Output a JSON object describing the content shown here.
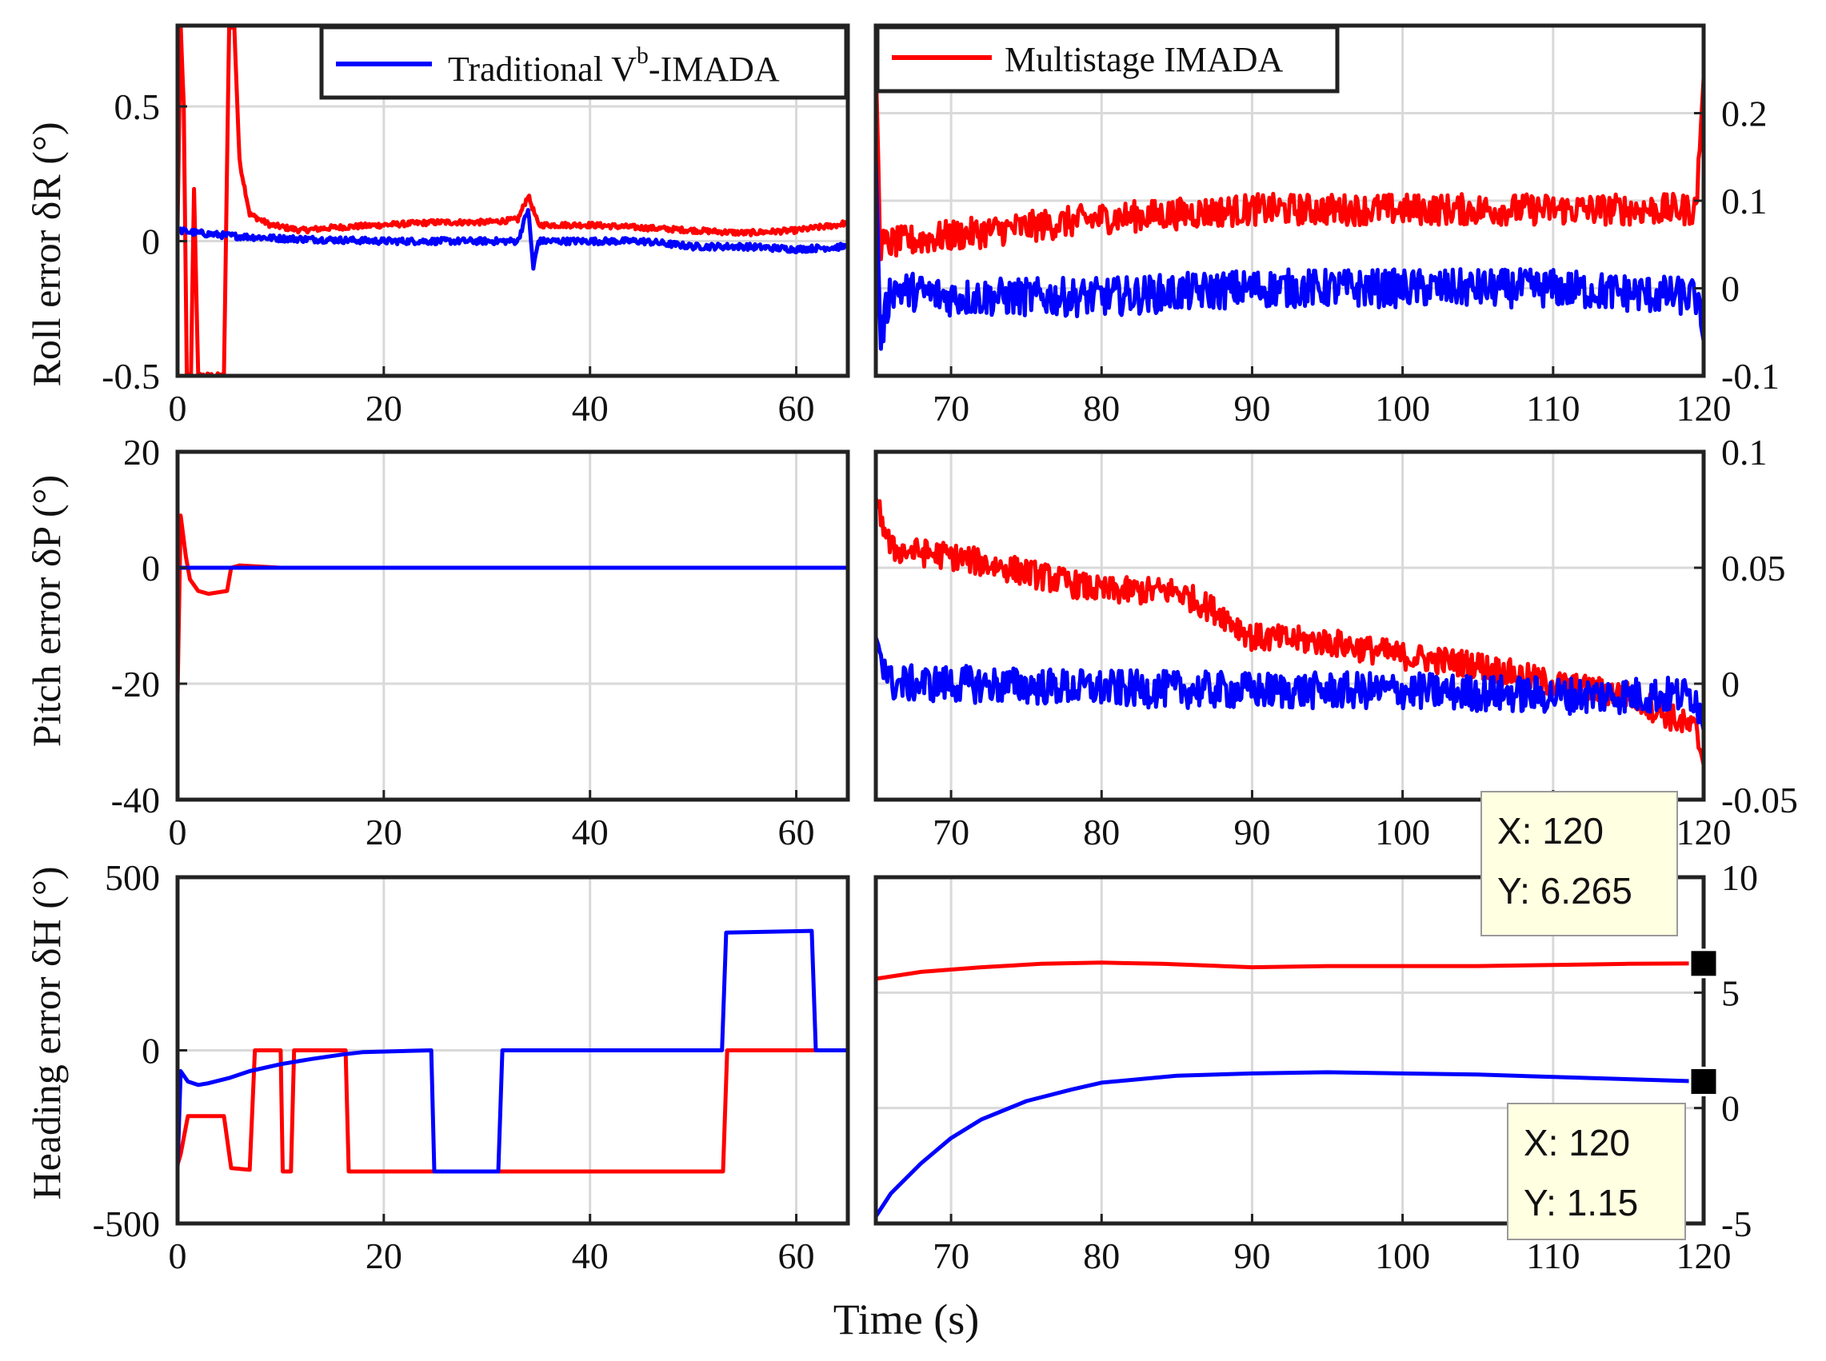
{
  "chart_data": {
    "type": "line",
    "xlabel": "Time (s)",
    "colors": {
      "traditional": "#0000ff",
      "multistage": "#ff0000",
      "grid": "#d9d9d9",
      "frame": "#222222"
    },
    "legend": [
      {
        "name": "Traditional V",
        "sup": "b",
        "suffix": "-IMADA",
        "color": "#0000ff",
        "placement": "top-left-panel"
      },
      {
        "name": "Multistage IMADA",
        "color": "#ff0000",
        "placement": "top-right-panel"
      }
    ],
    "rows": [
      {
        "ylabel": "Roll error δR (°)"
      },
      {
        "ylabel": "Pitch error δP (°)"
      },
      {
        "ylabel": "Heading error δH (°)"
      }
    ],
    "panels": [
      {
        "id": "roll-left",
        "row": 0,
        "side": "left",
        "xlim": [
          0,
          65
        ],
        "ylim": [
          -0.5,
          0.8
        ],
        "xticks": [
          0,
          20,
          40,
          60
        ],
        "xticklabels": [
          "0",
          "20",
          "40",
          "60"
        ],
        "yticks": [
          -0.5,
          0,
          0.5
        ],
        "yticklabels": [
          "-0.5",
          "0",
          "0.5"
        ],
        "series": [
          {
            "name": "Multistage IMADA",
            "color": "#ff0000",
            "points": [
              [
                0,
                0.05
              ],
              [
                0.3,
                0.8
              ],
              [
                0.6,
                0.5
              ],
              [
                0.9,
                -0.5
              ],
              [
                1.3,
                -0.5
              ],
              [
                1.6,
                0.2
              ],
              [
                2,
                -0.5
              ],
              [
                4.5,
                -0.5
              ],
              [
                5,
                0.8
              ],
              [
                5.5,
                0.8
              ],
              [
                6,
                0.3
              ],
              [
                7,
                0.1
              ],
              [
                9,
                0.06
              ],
              [
                12,
                0.04
              ],
              [
                15,
                0.05
              ],
              [
                20,
                0.06
              ],
              [
                25,
                0.07
              ],
              [
                30,
                0.07
              ],
              [
                33,
                0.08
              ],
              [
                34,
                0.17
              ],
              [
                35,
                0.06
              ],
              [
                40,
                0.06
              ],
              [
                45,
                0.05
              ],
              [
                50,
                0.04
              ],
              [
                55,
                0.03
              ],
              [
                60,
                0.04
              ],
              [
                64,
                0.06
              ],
              [
                65,
                0.07
              ]
            ],
            "noise": 0.01
          },
          {
            "name": "Traditional Vb-IMADA",
            "color": "#0000ff",
            "points": [
              [
                0,
                0.04
              ],
              [
                2,
                0.03
              ],
              [
                5,
                0.02
              ],
              [
                10,
                0.01
              ],
              [
                20,
                0.0
              ],
              [
                30,
                0.0
              ],
              [
                33,
                0.0
              ],
              [
                34,
                0.12
              ],
              [
                34.5,
                -0.1
              ],
              [
                35,
                0.0
              ],
              [
                40,
                0.0
              ],
              [
                45,
                0.0
              ],
              [
                50,
                -0.02
              ],
              [
                55,
                -0.02
              ],
              [
                60,
                -0.03
              ],
              [
                65,
                -0.02
              ]
            ],
            "noise": 0.012
          }
        ]
      },
      {
        "id": "roll-right",
        "row": 0,
        "side": "right",
        "xlim": [
          65,
          120
        ],
        "ylim": [
          -0.1,
          0.3
        ],
        "xticks": [
          70,
          80,
          90,
          100,
          110,
          120
        ],
        "xticklabels": [
          "70",
          "80",
          "90",
          "100",
          "110",
          "120"
        ],
        "yticks": [
          -0.1,
          0,
          0.1,
          0.2
        ],
        "yticklabels": [
          "-0.1",
          "0",
          "0.1",
          "0.2"
        ],
        "series": [
          {
            "name": "Multistage IMADA",
            "color": "#ff0000",
            "points": [
              [
                65,
                0.26
              ],
              [
                65.3,
                0.05
              ],
              [
                70,
                0.06
              ],
              [
                80,
                0.08
              ],
              [
                90,
                0.09
              ],
              [
                100,
                0.09
              ],
              [
                110,
                0.09
              ],
              [
                119.5,
                0.09
              ],
              [
                120,
                0.24
              ]
            ],
            "noise": 0.018
          },
          {
            "name": "Traditional Vb-IMADA",
            "color": "#0000ff",
            "points": [
              [
                65,
                0.15
              ],
              [
                65.3,
                -0.06
              ],
              [
                66,
                0.0
              ],
              [
                70,
                -0.01
              ],
              [
                80,
                -0.01
              ],
              [
                90,
                0.0
              ],
              [
                100,
                0.0
              ],
              [
                110,
                0.0
              ],
              [
                119.5,
                -0.01
              ],
              [
                120,
                -0.06
              ]
            ],
            "noise": 0.022
          }
        ]
      },
      {
        "id": "pitch-left",
        "row": 1,
        "side": "left",
        "xlim": [
          0,
          65
        ],
        "ylim": [
          -40,
          20
        ],
        "xticks": [
          0,
          20,
          40,
          60
        ],
        "xticklabels": [
          "0",
          "20",
          "40",
          "60"
        ],
        "yticks": [
          -40,
          -20,
          0,
          20
        ],
        "yticklabels": [
          "-40",
          "-20",
          "0",
          "20"
        ],
        "series": [
          {
            "name": "Multistage IMADA",
            "color": "#ff0000",
            "points": [
              [
                0,
                -22
              ],
              [
                0.3,
                9
              ],
              [
                0.8,
                2
              ],
              [
                1.2,
                -2
              ],
              [
                2,
                -4
              ],
              [
                3,
                -4.5
              ],
              [
                4.8,
                -4
              ],
              [
                5.2,
                0
              ],
              [
                6,
                0.4
              ],
              [
                10,
                0
              ],
              [
                20,
                0
              ],
              [
                40,
                0
              ],
              [
                65,
                0
              ]
            ],
            "noise": 0
          },
          {
            "name": "Traditional Vb-IMADA",
            "color": "#0000ff",
            "points": [
              [
                0,
                0
              ],
              [
                20,
                0
              ],
              [
                40,
                0
              ],
              [
                65,
                0
              ]
            ],
            "noise": 0
          }
        ]
      },
      {
        "id": "pitch-right",
        "row": 1,
        "side": "right",
        "xlim": [
          65,
          120
        ],
        "ylim": [
          -0.05,
          0.1
        ],
        "xticks": [
          70,
          80,
          90,
          100,
          110,
          120
        ],
        "xticklabels": [
          "70",
          "80",
          "90",
          "100",
          "110",
          "120"
        ],
        "yticks": [
          -0.05,
          0,
          0.05,
          0.1
        ],
        "yticklabels": [
          "-0.05",
          "0",
          "0.05",
          "0.1"
        ],
        "series": [
          {
            "name": "Multistage IMADA",
            "color": "#ff0000",
            "points": [
              [
                65,
                0.08
              ],
              [
                66,
                0.058
              ],
              [
                70,
                0.055
              ],
              [
                75,
                0.048
              ],
              [
                80,
                0.04
              ],
              [
                85,
                0.04
              ],
              [
                88,
                0.03
              ],
              [
                90,
                0.02
              ],
              [
                95,
                0.018
              ],
              [
                100,
                0.012
              ],
              [
                105,
                0.008
              ],
              [
                110,
                0.0
              ],
              [
                115,
                -0.005
              ],
              [
                119.5,
                -0.02
              ],
              [
                120,
                -0.035
              ]
            ],
            "noise": 0.006
          },
          {
            "name": "Traditional Vb-IMADA",
            "color": "#0000ff",
            "points": [
              [
                65,
                0.02
              ],
              [
                66,
                0.0
              ],
              [
                70,
                0.0
              ],
              [
                80,
                -0.002
              ],
              [
                90,
                -0.003
              ],
              [
                100,
                -0.003
              ],
              [
                110,
                -0.005
              ],
              [
                119.5,
                -0.005
              ],
              [
                120,
                -0.02
              ]
            ],
            "noise": 0.008
          }
        ]
      },
      {
        "id": "heading-left",
        "row": 2,
        "side": "left",
        "xlim": [
          0,
          65
        ],
        "ylim": [
          -500,
          500
        ],
        "xticks": [
          0,
          20,
          40,
          60
        ],
        "xticklabels": [
          "0",
          "20",
          "40",
          "60"
        ],
        "yticks": [
          -500,
          0,
          500
        ],
        "yticklabels": [
          "-500",
          "0",
          "500"
        ],
        "series": [
          {
            "name": "Multistage IMADA",
            "color": "#ff0000",
            "points": [
              [
                0,
                -330
              ],
              [
                0.3,
                -300
              ],
              [
                1,
                -190
              ],
              [
                4.5,
                -190
              ],
              [
                5.2,
                -340
              ],
              [
                7,
                -345
              ],
              [
                7.5,
                0
              ],
              [
                10,
                0
              ],
              [
                10.2,
                -350
              ],
              [
                11,
                -350
              ],
              [
                11.3,
                0
              ],
              [
                16.3,
                0
              ],
              [
                16.6,
                -350
              ],
              [
                52.9,
                -350
              ],
              [
                53.3,
                0
              ],
              [
                65,
                0
              ]
            ],
            "noise": 0
          },
          {
            "name": "Traditional Vb-IMADA",
            "color": "#0000ff",
            "points": [
              [
                0,
                -340
              ],
              [
                0.3,
                -60
              ],
              [
                1,
                -90
              ],
              [
                2,
                -100
              ],
              [
                3,
                -95
              ],
              [
                5,
                -80
              ],
              [
                7,
                -60
              ],
              [
                10,
                -40
              ],
              [
                13,
                -25
              ],
              [
                16,
                -12
              ],
              [
                18,
                -5
              ],
              [
                24.6,
                0
              ],
              [
                24.9,
                -350
              ],
              [
                31.1,
                -350
              ],
              [
                31.5,
                0
              ],
              [
                52.8,
                0
              ],
              [
                53.2,
                340
              ],
              [
                61.5,
                345
              ],
              [
                61.9,
                0
              ],
              [
                65,
                0
              ]
            ],
            "noise": 0
          }
        ]
      },
      {
        "id": "heading-right",
        "row": 2,
        "side": "right",
        "xlim": [
          65,
          120
        ],
        "ylim": [
          -5,
          10
        ],
        "xticks": [
          70,
          80,
          90,
          100,
          110,
          120
        ],
        "xticklabels": [
          "70",
          "80",
          "90",
          "100",
          "110",
          "120"
        ],
        "yticks": [
          -5,
          0,
          5,
          10
        ],
        "yticklabels": [
          "-5",
          "0",
          "5",
          "10"
        ],
        "series": [
          {
            "name": "Multistage IMADA",
            "color": "#ff0000",
            "points": [
              [
                65,
                5.6
              ],
              [
                68,
                5.9
              ],
              [
                72,
                6.1
              ],
              [
                76,
                6.25
              ],
              [
                80,
                6.3
              ],
              [
                84,
                6.25
              ],
              [
                90,
                6.1
              ],
              [
                95,
                6.15
              ],
              [
                100,
                6.15
              ],
              [
                105,
                6.15
              ],
              [
                110,
                6.2
              ],
              [
                115,
                6.25
              ],
              [
                120,
                6.265
              ]
            ],
            "noise": 0
          },
          {
            "name": "Traditional Vb-IMADA",
            "color": "#0000ff",
            "points": [
              [
                65,
                -4.7
              ],
              [
                66,
                -3.7
              ],
              [
                68,
                -2.4
              ],
              [
                70,
                -1.3
              ],
              [
                72,
                -0.5
              ],
              [
                75,
                0.3
              ],
              [
                78,
                0.8
              ],
              [
                80,
                1.1
              ],
              [
                85,
                1.4
              ],
              [
                90,
                1.5
              ],
              [
                95,
                1.55
              ],
              [
                100,
                1.5
              ],
              [
                105,
                1.45
              ],
              [
                110,
                1.35
              ],
              [
                115,
                1.25
              ],
              [
                120,
                1.15
              ]
            ],
            "noise": 0
          }
        ]
      }
    ],
    "datatips": [
      {
        "panel": "heading-right",
        "x": 120,
        "y": 6.265,
        "line1": "X: 120",
        "line2": "Y: 6.265"
      },
      {
        "panel": "heading-right",
        "x": 120,
        "y": 1.15,
        "line1": "X: 120",
        "line2": "Y: 1.15"
      }
    ]
  }
}
